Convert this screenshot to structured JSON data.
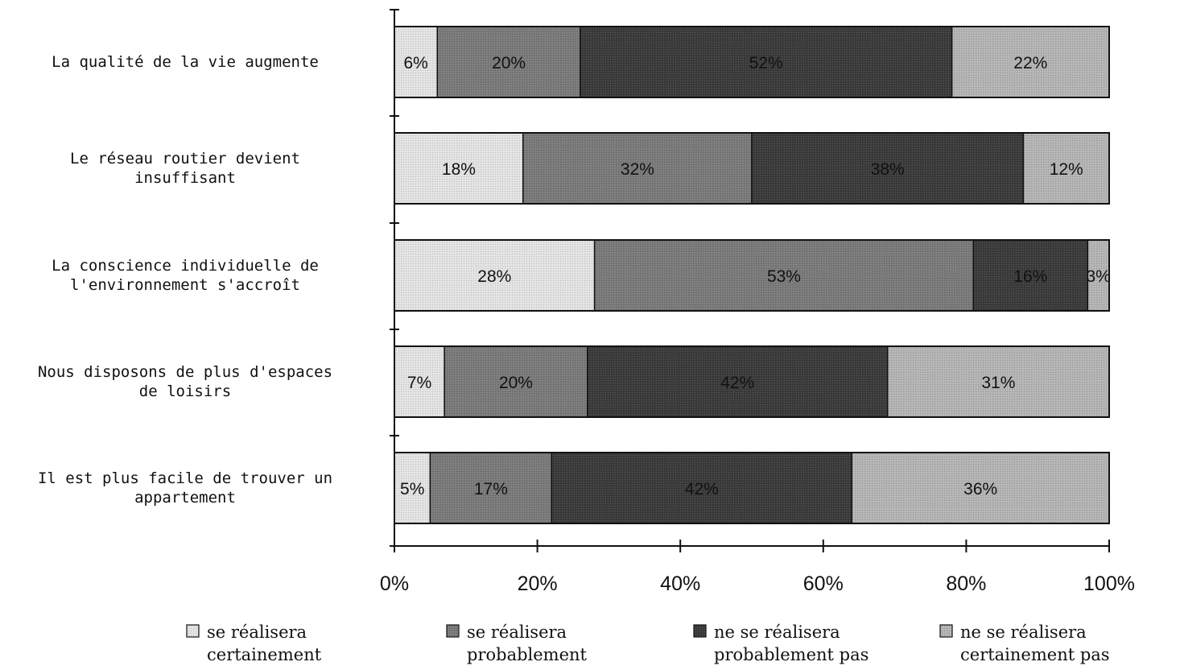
{
  "chart_data": {
    "type": "bar",
    "orientation": "horizontal",
    "stacked": "100%",
    "categories": [
      "La qualité de la vie augmente",
      "Le réseau routier devient insuffisant",
      "La conscience individuelle de l'environnement s'accroît",
      "Nous disposons de plus d'espaces de loisirs",
      "Il est plus facile de trouver un appartement"
    ],
    "category_lines": [
      [
        "La qualité de la vie augmente"
      ],
      [
        "Le réseau routier devient",
        "insuffisant"
      ],
      [
        "La conscience individuelle de",
        "l'environnement s'accroît"
      ],
      [
        "Nous disposons de plus d'espaces",
        "de loisirs"
      ],
      [
        "Il est plus facile de trouver un",
        "appartement"
      ]
    ],
    "series": [
      {
        "name": "se réalisera certainement",
        "legend_lines": [
          "se réalisera",
          "certainement"
        ],
        "color": "#e3e3e3",
        "values": [
          6,
          18,
          28,
          7,
          5
        ],
        "labels": [
          "6%",
          "18%",
          "28%",
          "7%",
          "5%"
        ]
      },
      {
        "name": "se réalisera probablement",
        "legend_lines": [
          "se réalisera",
          "probablement"
        ],
        "color": "#7a7a7a",
        "values": [
          20,
          32,
          53,
          20,
          17
        ],
        "labels": [
          "20%",
          "32%",
          "53%",
          "20%",
          "17%"
        ]
      },
      {
        "name": "ne se réalisera probablement pas",
        "legend_lines": [
          "ne se réalisera",
          "probablement pas"
        ],
        "color": "#3b3b3b",
        "values": [
          52,
          38,
          16,
          42,
          42
        ],
        "labels": [
          "52%",
          "38%",
          "16%",
          "42%",
          "42%"
        ]
      },
      {
        "name": "ne se réalisera certainement pas",
        "legend_lines": [
          "ne se réalisera",
          "certainement pas"
        ],
        "color": "#b4b4b4",
        "values": [
          22,
          12,
          3,
          31,
          36
        ],
        "labels": [
          "22%",
          "12%",
          "3%",
          "31%",
          "36%"
        ]
      }
    ],
    "x_ticks": [
      "0%",
      "20%",
      "40%",
      "60%",
      "80%",
      "100%"
    ],
    "xlim": [
      0,
      100
    ],
    "legend": "bottom",
    "grid": false
  }
}
